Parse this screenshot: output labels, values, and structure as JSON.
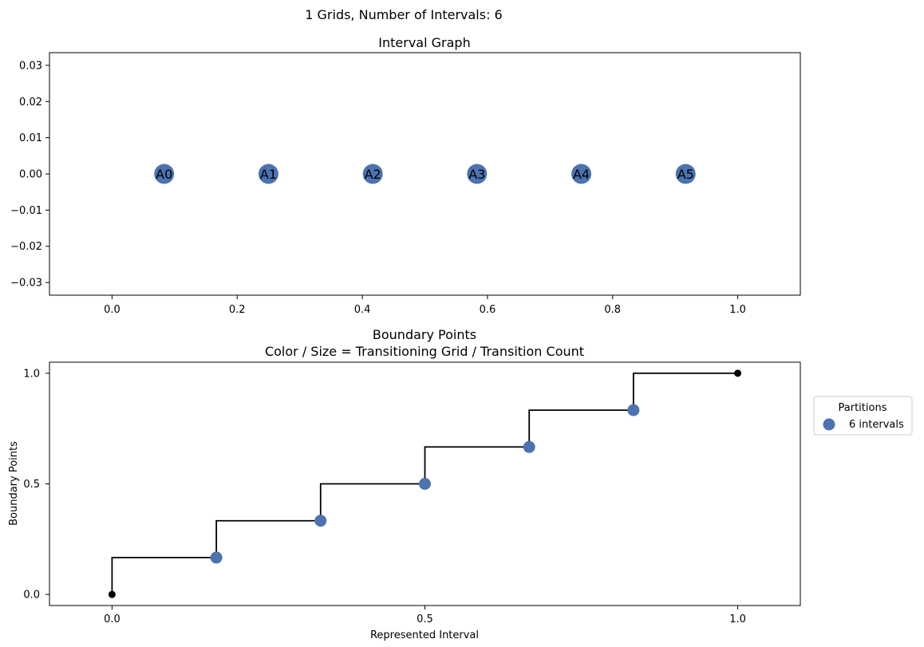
{
  "figure": {
    "suptitle": "1 Grids, Number of Intervals: 6"
  },
  "chart_data": [
    {
      "type": "scatter",
      "title": "Interval Graph",
      "xlabel": "",
      "ylabel": "",
      "xlim": [
        -0.1,
        1.1
      ],
      "ylim": [
        -0.0335,
        0.0335
      ],
      "xticks": [
        0.0,
        0.2,
        0.4,
        0.6,
        0.8,
        1.0
      ],
      "xtick_labels": [
        "0.0",
        "0.2",
        "0.4",
        "0.6",
        "0.8",
        "1.0"
      ],
      "yticks": [
        0.03,
        0.02,
        0.01,
        0.0,
        -0.01,
        -0.02,
        -0.03
      ],
      "ytick_labels": [
        "0.03",
        "0.02",
        "0.01",
        "0.00",
        "−0.01",
        "−0.02",
        "−0.03"
      ],
      "grid": false,
      "nodes": [
        {
          "label": "A0",
          "x": 0.0833,
          "y": 0.0
        },
        {
          "label": "A1",
          "x": 0.25,
          "y": 0.0
        },
        {
          "label": "A2",
          "x": 0.4167,
          "y": 0.0
        },
        {
          "label": "A3",
          "x": 0.5833,
          "y": 0.0
        },
        {
          "label": "A4",
          "x": 0.75,
          "y": 0.0
        },
        {
          "label": "A5",
          "x": 0.9167,
          "y": 0.0
        }
      ],
      "node_color": "#4c72b0"
    },
    {
      "type": "line",
      "title": "Boundary Points\nColor / Size = Transitioning Grid / Transition Count",
      "title_lines": [
        "Boundary Points",
        "Color / Size = Transitioning Grid / Transition Count"
      ],
      "xlabel": "Represented Interval",
      "ylabel": "Boundary Points",
      "xlim": [
        -0.1,
        1.1
      ],
      "ylim": [
        -0.05,
        1.05
      ],
      "xticks": [
        0.0,
        0.5,
        1.0
      ],
      "xtick_labels": [
        "0.0",
        "0.5",
        "1.0"
      ],
      "yticks": [
        1.0,
        0.5,
        0.0
      ],
      "ytick_labels": [
        "1.0",
        "0.5",
        "0.0"
      ],
      "grid": false,
      "step_line": {
        "color": "#000000",
        "points": [
          [
            0.0,
            0.0
          ],
          [
            0.0,
            0.1667
          ],
          [
            0.1667,
            0.1667
          ],
          [
            0.1667,
            0.3333
          ],
          [
            0.3333,
            0.3333
          ],
          [
            0.3333,
            0.5
          ],
          [
            0.5,
            0.5
          ],
          [
            0.5,
            0.6667
          ],
          [
            0.6667,
            0.6667
          ],
          [
            0.6667,
            0.8333
          ],
          [
            0.8333,
            0.8333
          ],
          [
            0.8333,
            1.0
          ],
          [
            1.0,
            1.0
          ]
        ]
      },
      "endpoints": {
        "color": "#000000",
        "points": [
          [
            0.0,
            0.0
          ],
          [
            1.0,
            1.0
          ]
        ]
      },
      "series": [
        {
          "name": "6 intervals",
          "color": "#4c72b0",
          "points": [
            [
              0.1667,
              0.1667
            ],
            [
              0.3333,
              0.3333
            ],
            [
              0.5,
              0.5
            ],
            [
              0.6667,
              0.6667
            ],
            [
              0.8333,
              0.8333
            ]
          ]
        }
      ],
      "legend": {
        "title": "Partitions",
        "placement": "outside-right",
        "entries": [
          "6 intervals"
        ]
      }
    }
  ]
}
